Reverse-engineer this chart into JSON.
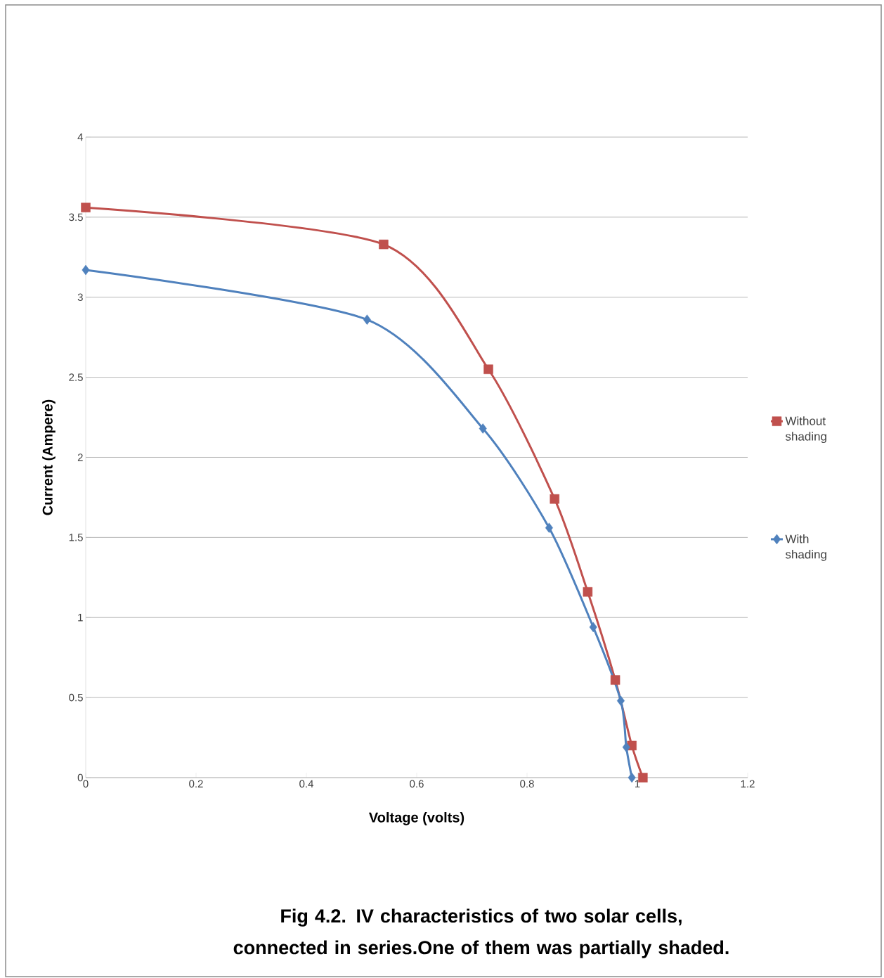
{
  "chart_data": {
    "type": "line",
    "xlabel": "Voltage (volts)",
    "ylabel": "Current (Ampere)",
    "xlim": [
      0,
      1.2
    ],
    "xticks": [
      0,
      0.2,
      0.4,
      0.6,
      0.8,
      1,
      1.2
    ],
    "ylim": [
      0,
      4
    ],
    "yticks": [
      0,
      0.5,
      1,
      1.5,
      2,
      2.5,
      3,
      3.5,
      4
    ],
    "grid": "y",
    "legend": "right",
    "series": [
      {
        "name": "Without shading",
        "color": "#c0504d",
        "marker": "square",
        "x": [
          0,
          0.54,
          0.73,
          0.85,
          0.91,
          0.96,
          0.99,
          1.01
        ],
        "values": [
          3.56,
          3.33,
          2.55,
          1.74,
          1.16,
          0.61,
          0.2,
          0
        ]
      },
      {
        "name": "With shading",
        "color": "#4f81bd",
        "marker": "diamond",
        "x": [
          0,
          0.51,
          0.72,
          0.84,
          0.92,
          0.97,
          0.98,
          0.99
        ],
        "values": [
          3.17,
          2.86,
          2.18,
          1.56,
          0.94,
          0.48,
          0.19,
          0
        ]
      }
    ],
    "annotations": [
      "Fig 4.2.  IV characteristics of two solar cells,  connected in series.One of them  was partially shaded."
    ]
  }
}
